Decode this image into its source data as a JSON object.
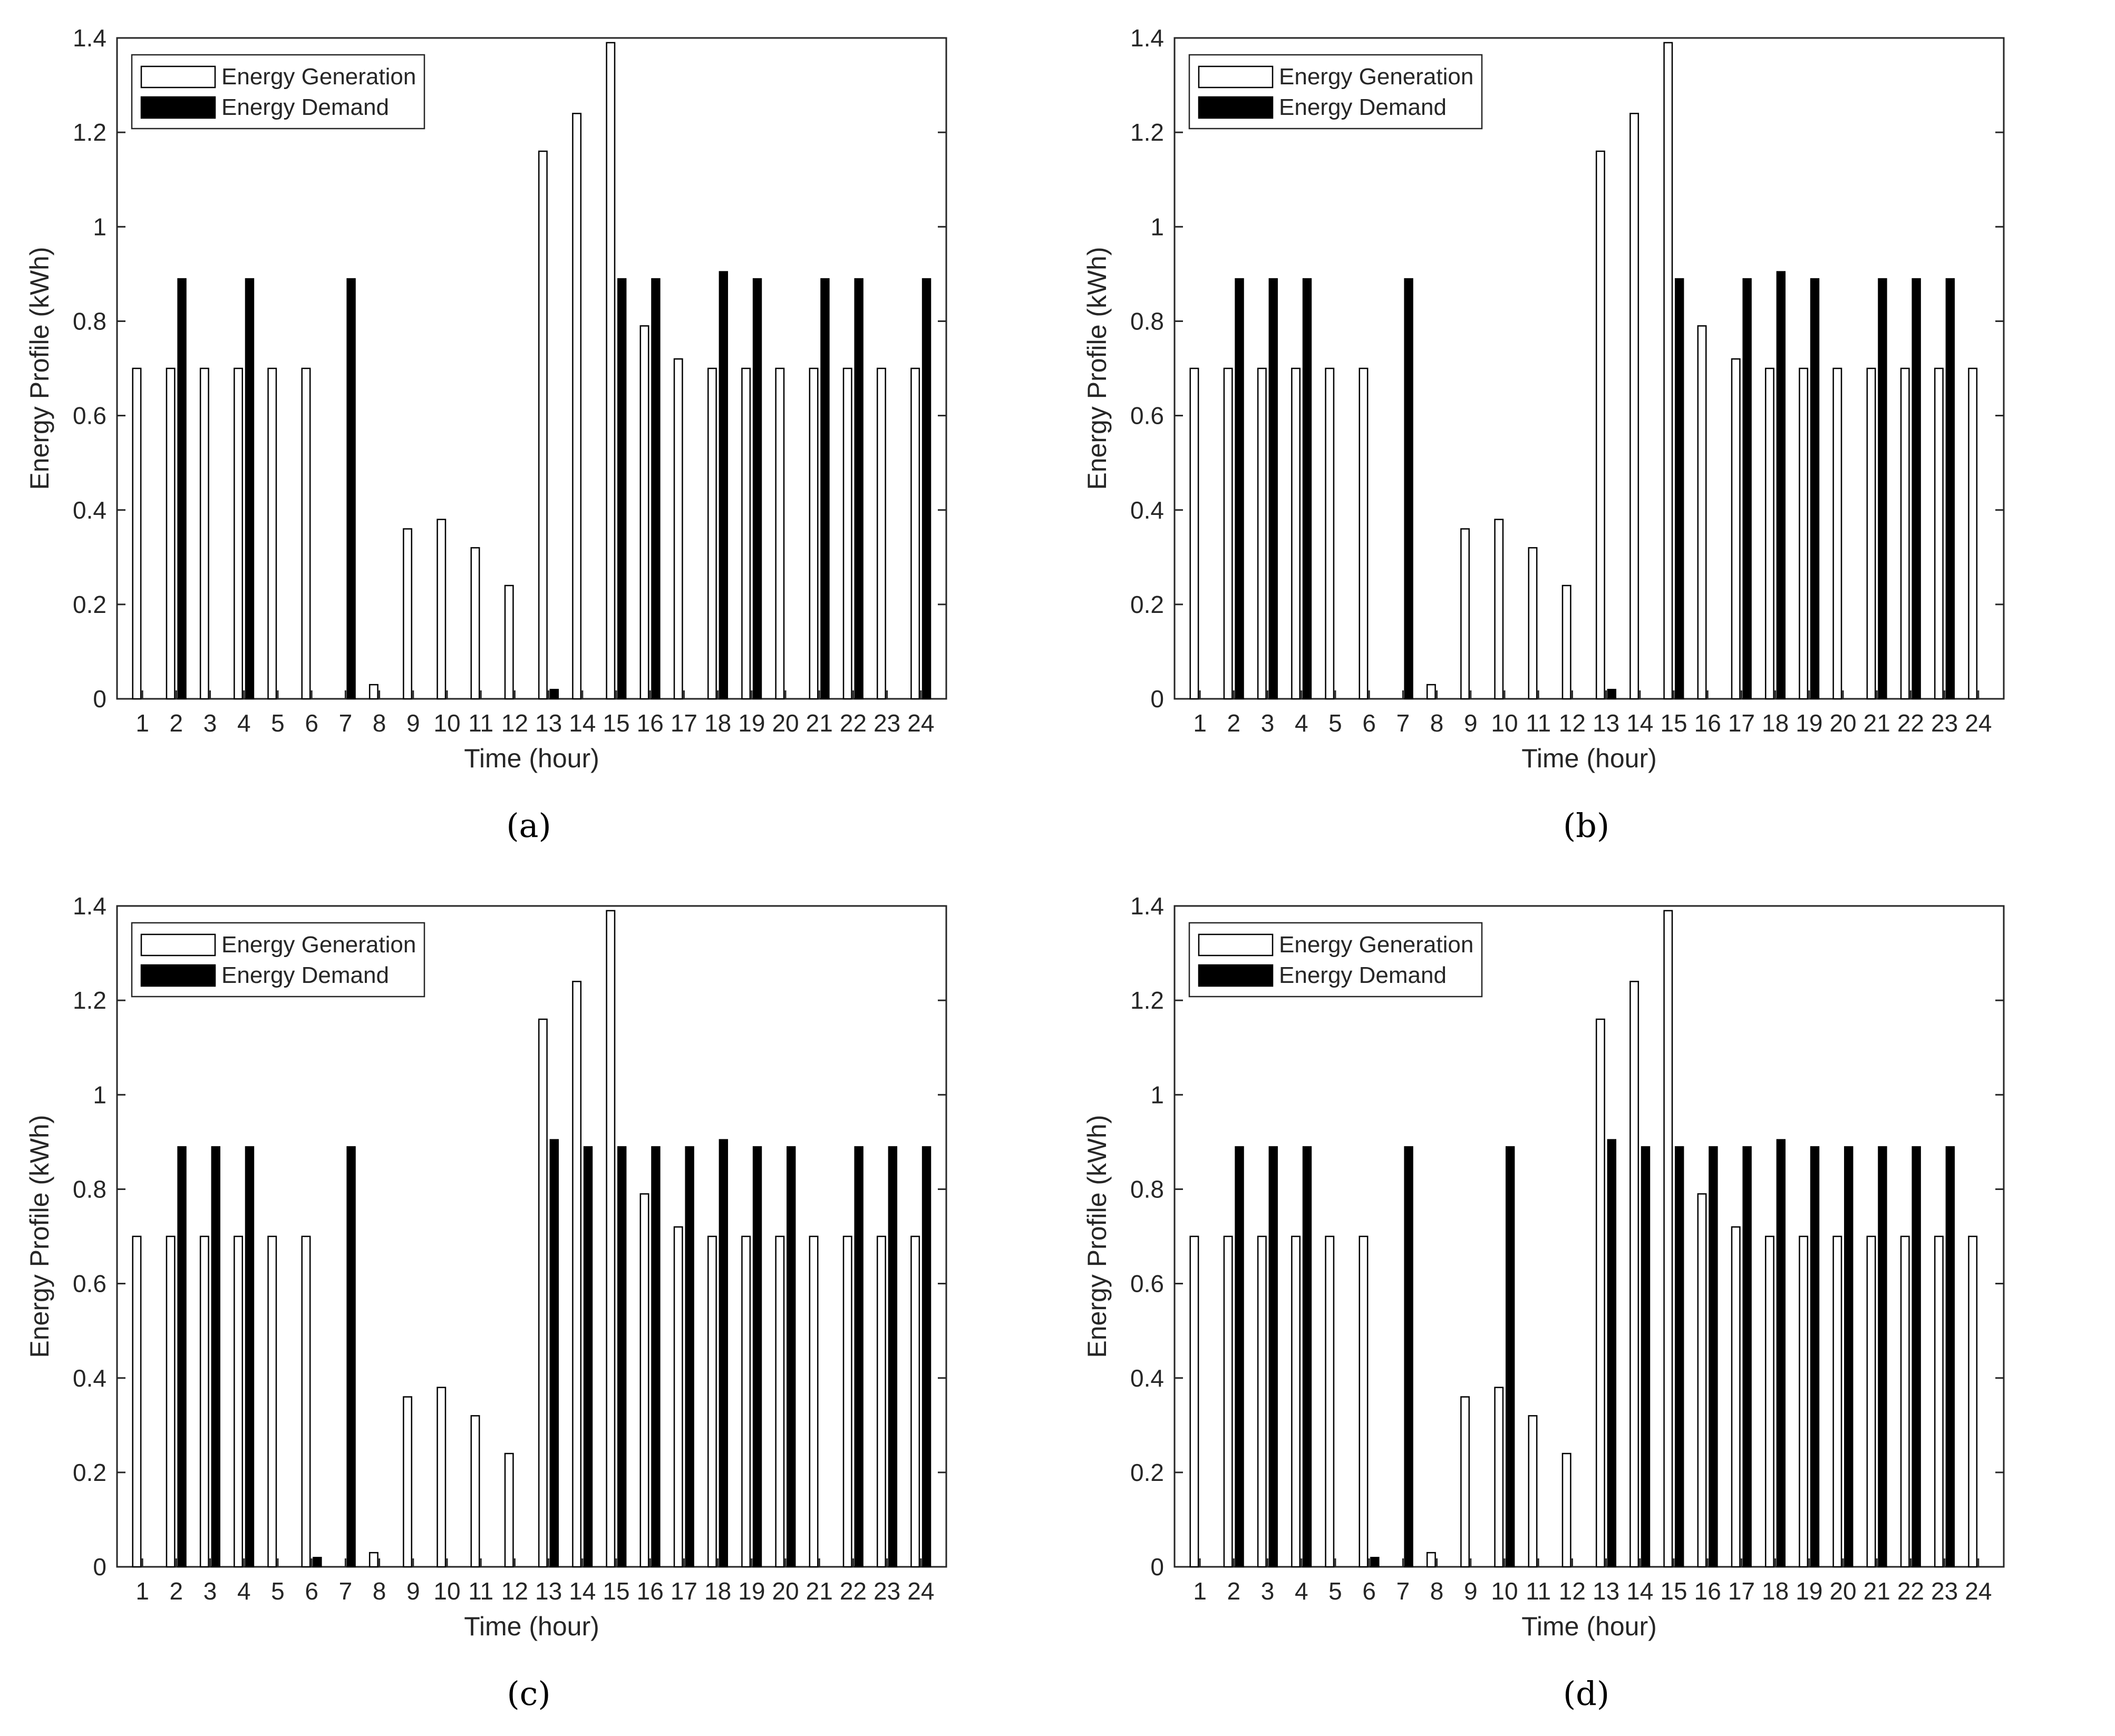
{
  "figure": {
    "captions": [
      "(a)",
      "(b)",
      "(c)",
      "(d)"
    ]
  },
  "chart_data": [
    {
      "type": "bar",
      "panel": "(a)",
      "xlabel": "Time (hour)",
      "ylabel": "Energy Profile (kWh)",
      "ylim": [
        0,
        1.4
      ],
      "yticks": [
        "0",
        "0.2",
        "0.4",
        "0.6",
        "0.8",
        "1",
        "1.2",
        "1.4"
      ],
      "categories": [
        "1",
        "2",
        "3",
        "4",
        "5",
        "6",
        "7",
        "8",
        "9",
        "10",
        "11",
        "12",
        "13",
        "14",
        "15",
        "16",
        "17",
        "18",
        "19",
        "20",
        "21",
        "22",
        "23",
        "24"
      ],
      "legend_position": "top-left",
      "series": [
        {
          "name": "Energy Generation",
          "color": "#ffffff",
          "values": [
            0.7,
            0.7,
            0.7,
            0.7,
            0.7,
            0.7,
            0.0,
            0.03,
            0.36,
            0.38,
            0.32,
            0.24,
            1.16,
            1.24,
            1.39,
            0.79,
            0.72,
            0.7,
            0.7,
            0.7,
            0.7,
            0.7,
            0.7,
            0.7
          ]
        },
        {
          "name": "Energy Demand",
          "color": "#000000",
          "values": [
            0,
            0.89,
            0,
            0.89,
            0,
            0,
            0.89,
            0,
            0,
            0,
            0,
            0,
            0.02,
            0,
            0.89,
            0.89,
            0,
            0.905,
            0.89,
            0,
            0.89,
            0.89,
            0,
            0.89
          ]
        }
      ]
    },
    {
      "type": "bar",
      "panel": "(b)",
      "xlabel": "Time (hour)",
      "ylabel": "Energy Profile (kWh)",
      "ylim": [
        0,
        1.4
      ],
      "yticks": [
        "0",
        "0.2",
        "0.4",
        "0.6",
        "0.8",
        "1",
        "1.2",
        "1.4"
      ],
      "categories": [
        "1",
        "2",
        "3",
        "4",
        "5",
        "6",
        "7",
        "8",
        "9",
        "10",
        "11",
        "12",
        "13",
        "14",
        "15",
        "16",
        "17",
        "18",
        "19",
        "20",
        "21",
        "22",
        "23",
        "24"
      ],
      "legend_position": "top-left",
      "series": [
        {
          "name": "Energy Generation",
          "color": "#ffffff",
          "values": [
            0.7,
            0.7,
            0.7,
            0.7,
            0.7,
            0.7,
            0.0,
            0.03,
            0.36,
            0.38,
            0.32,
            0.24,
            1.16,
            1.24,
            1.39,
            0.79,
            0.72,
            0.7,
            0.7,
            0.7,
            0.7,
            0.7,
            0.7,
            0.7
          ]
        },
        {
          "name": "Energy Demand",
          "color": "#000000",
          "values": [
            0,
            0.89,
            0.89,
            0.89,
            0,
            0,
            0.89,
            0,
            0,
            0,
            0,
            0,
            0.02,
            0,
            0.89,
            0,
            0.89,
            0.905,
            0.89,
            0,
            0.89,
            0.89,
            0.89,
            0
          ]
        }
      ]
    },
    {
      "type": "bar",
      "panel": "(c)",
      "xlabel": "Time (hour)",
      "ylabel": "Energy Profile (kWh)",
      "ylim": [
        0,
        1.4
      ],
      "yticks": [
        "0",
        "0.2",
        "0.4",
        "0.6",
        "0.8",
        "1",
        "1.2",
        "1.4"
      ],
      "categories": [
        "1",
        "2",
        "3",
        "4",
        "5",
        "6",
        "7",
        "8",
        "9",
        "10",
        "11",
        "12",
        "13",
        "14",
        "15",
        "16",
        "17",
        "18",
        "19",
        "20",
        "21",
        "22",
        "23",
        "24"
      ],
      "legend_position": "top-left",
      "series": [
        {
          "name": "Energy Generation",
          "color": "#ffffff",
          "values": [
            0.7,
            0.7,
            0.7,
            0.7,
            0.7,
            0.7,
            0.0,
            0.03,
            0.36,
            0.38,
            0.32,
            0.24,
            1.16,
            1.24,
            1.39,
            0.79,
            0.72,
            0.7,
            0.7,
            0.7,
            0.7,
            0.7,
            0.7,
            0.7
          ]
        },
        {
          "name": "Energy Demand",
          "color": "#000000",
          "values": [
            0,
            0.89,
            0.89,
            0.89,
            0,
            0.02,
            0.89,
            0,
            0,
            0,
            0,
            0,
            0.905,
            0.89,
            0.89,
            0.89,
            0.89,
            0.905,
            0.89,
            0.89,
            0,
            0.89,
            0.89,
            0.89
          ]
        }
      ]
    },
    {
      "type": "bar",
      "panel": "(d)",
      "xlabel": "Time (hour)",
      "ylabel": "Energy Profile (kWh)",
      "ylim": [
        0,
        1.4
      ],
      "yticks": [
        "0",
        "0.2",
        "0.4",
        "0.6",
        "0.8",
        "1",
        "1.2",
        "1.4"
      ],
      "categories": [
        "1",
        "2",
        "3",
        "4",
        "5",
        "6",
        "7",
        "8",
        "9",
        "10",
        "11",
        "12",
        "13",
        "14",
        "15",
        "16",
        "17",
        "18",
        "19",
        "20",
        "21",
        "22",
        "23",
        "24"
      ],
      "legend_position": "top-left",
      "series": [
        {
          "name": "Energy Generation",
          "color": "#ffffff",
          "values": [
            0.7,
            0.7,
            0.7,
            0.7,
            0.7,
            0.7,
            0.0,
            0.03,
            0.36,
            0.38,
            0.32,
            0.24,
            1.16,
            1.24,
            1.39,
            0.79,
            0.72,
            0.7,
            0.7,
            0.7,
            0.7,
            0.7,
            0.7,
            0.7
          ]
        },
        {
          "name": "Energy Demand",
          "color": "#000000",
          "values": [
            0,
            0.89,
            0.89,
            0.89,
            0,
            0.02,
            0.89,
            0,
            0,
            0.89,
            0,
            0,
            0.905,
            0.89,
            0.89,
            0.89,
            0.89,
            0.905,
            0.89,
            0.89,
            0.89,
            0.89,
            0.89,
            0
          ]
        }
      ]
    }
  ]
}
